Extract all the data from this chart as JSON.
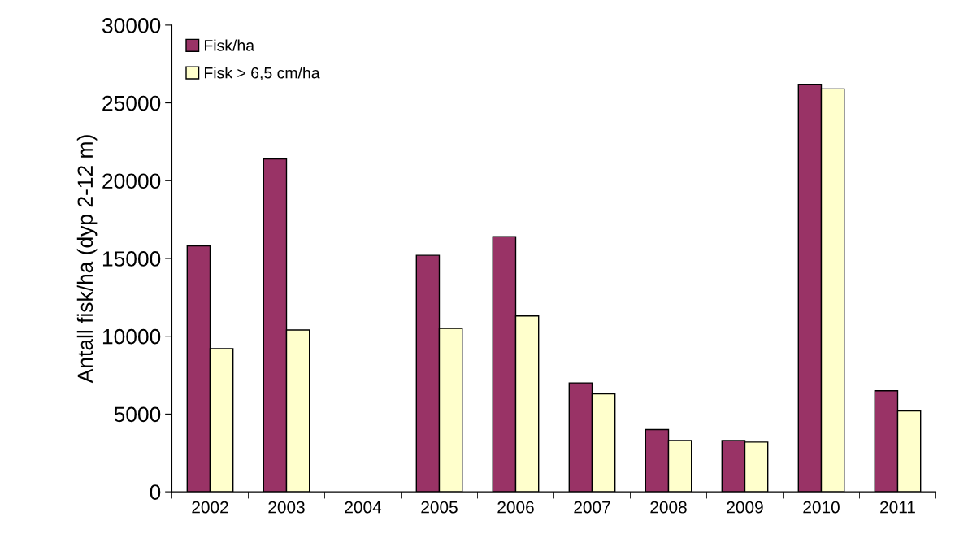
{
  "chart_data": {
    "type": "bar",
    "ylabel": "Antall fisk/ha (dyp 2-12 m)",
    "categories": [
      "2002",
      "2003",
      "2004",
      "2005",
      "2006",
      "2007",
      "2008",
      "2009",
      "2010",
      "2011"
    ],
    "series": [
      {
        "name": "Fisk/ha",
        "color": "#993366",
        "values": [
          15800,
          21400,
          null,
          15200,
          16400,
          7000,
          4000,
          3300,
          26200,
          6500
        ]
      },
      {
        "name": "Fisk > 6,5 cm/ha",
        "color": "#ffffcc",
        "values": [
          9200,
          10400,
          null,
          10500,
          11300,
          6300,
          3300,
          3200,
          25900,
          5200
        ]
      }
    ],
    "ylim": [
      0,
      30000
    ],
    "yticks": [
      0,
      5000,
      10000,
      15000,
      20000,
      25000,
      30000
    ],
    "grid": false,
    "legend": "top left"
  }
}
